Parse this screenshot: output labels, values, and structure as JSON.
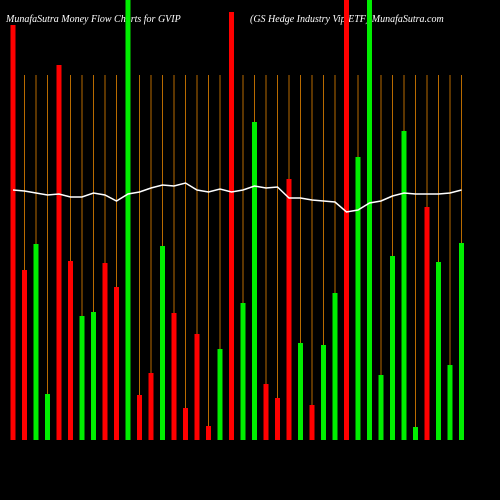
{
  "chart_data": {
    "type": "bar",
    "title": "MunafaSutra  Money Flow  Charts for GVIP",
    "subtitle": "(GS Hedge   Industry Vip   ETF) MunafaSutra.com",
    "ylim": [
      0,
      440
    ],
    "grid": true,
    "values": [
      415,
      170,
      196,
      46,
      375,
      179,
      124,
      128,
      177,
      153,
      440,
      45,
      67,
      194,
      127,
      32,
      106,
      14,
      91,
      428,
      137,
      318,
      56,
      42,
      261,
      97,
      35,
      95,
      147,
      440,
      283,
      440,
      65,
      184,
      309,
      13,
      233,
      178,
      75,
      197
    ],
    "colors": [
      "#ff0000",
      "#ff0000",
      "#00ee00",
      "#00ee00",
      "#ff0000",
      "#ff0000",
      "#00ee00",
      "#00ee00",
      "#ff0000",
      "#ff0000",
      "#00ee00",
      "#ff0000",
      "#ff0000",
      "#00ee00",
      "#ff0000",
      "#ff0000",
      "#ff0000",
      "#ff0000",
      "#00ee00",
      "#ff0000",
      "#00ee00",
      "#00ee00",
      "#ff0000",
      "#ff0000",
      "#ff0000",
      "#00ee00",
      "#ff0000",
      "#00ee00",
      "#00ee00",
      "#ff0000",
      "#00ee00",
      "#00ee00",
      "#00ee00",
      "#00ee00",
      "#00ee00",
      "#00ee00",
      "#ff0000",
      "#00ee00",
      "#00ee00",
      "#00ee00"
    ],
    "line": {
      "color": "#ffffff",
      "values": [
        250,
        249,
        247,
        245,
        246,
        243,
        243,
        247,
        245,
        239,
        246,
        248,
        252,
        255,
        254,
        257,
        250,
        248,
        251,
        248,
        250,
        254,
        252,
        253,
        242,
        242,
        240,
        239,
        238,
        228,
        230,
        237,
        239,
        244,
        247,
        246,
        246,
        246,
        247,
        250
      ]
    }
  }
}
